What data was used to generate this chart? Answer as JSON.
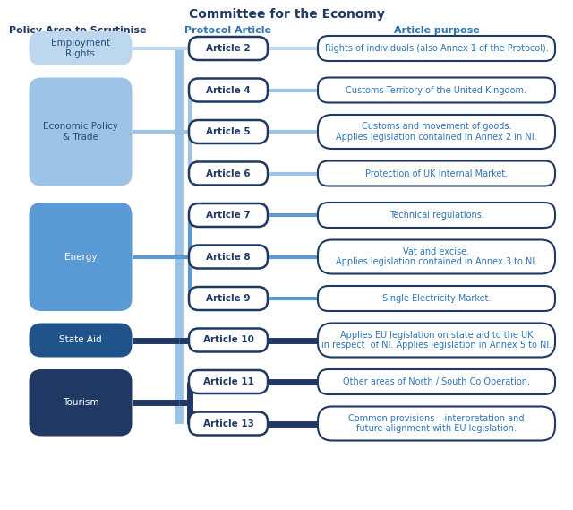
{
  "title": "Committee for the Economy",
  "col_headers": [
    "Policy Area to Scrutinise",
    "Protocol Article",
    "Article purpose"
  ],
  "articles": [
    {
      "label": "Article 2",
      "purpose": "Rights of individuals (also Annex 1 of the Protocol).",
      "purpose_lines": 1,
      "policy_area": "Employment\nRights"
    },
    {
      "label": "Article 4",
      "purpose": "Customs Territory of the United Kingdom.",
      "purpose_lines": 1,
      "policy_area": "Economic Policy\n& Trade"
    },
    {
      "label": "Article 5",
      "purpose": "Customs and movement of goods.\nApplies legislation contained in Annex 2 in NI.",
      "purpose_lines": 2,
      "policy_area": "Economic Policy\n& Trade"
    },
    {
      "label": "Article 6",
      "purpose": "Protection of UK Internal Market.",
      "purpose_lines": 1,
      "policy_area": "Economic Policy\n& Trade"
    },
    {
      "label": "Article 7",
      "purpose": "Technical regulations.",
      "purpose_lines": 1,
      "policy_area": "Energy"
    },
    {
      "label": "Article 8",
      "purpose": "Vat and excise.\nApplies legislation contained in Annex 3 to NI.",
      "purpose_lines": 2,
      "policy_area": "Energy"
    },
    {
      "label": "Article 9",
      "purpose": "Single Electricity Market.",
      "purpose_lines": 1,
      "policy_area": "Energy"
    },
    {
      "label": "Article 10",
      "purpose": "Applies EU legislation on state aid to the UK\nin respect  of NI. Applies legislation in Annex 5 to NI.",
      "purpose_lines": 2,
      "policy_area": "State Aid"
    },
    {
      "label": "Article 11",
      "purpose": "Other areas of North / South Co Operation.",
      "purpose_lines": 1,
      "policy_area": "Tourism"
    },
    {
      "label": "Article 13",
      "purpose": "Common provisions – interpretation and\nfuture alignment with EU legislation.",
      "purpose_lines": 2,
      "policy_area": "Tourism"
    }
  ],
  "policy_areas_order": [
    "Employment\nRights",
    "Economic Policy\n& Trade",
    "Energy",
    "State Aid",
    "Tourism"
  ],
  "policy_fill_colors": {
    "Employment\nRights": "#bdd7ee",
    "Economic Policy\n& Trade": "#9dc3e6",
    "Energy": "#5b9bd5",
    "State Aid": "#1f538a",
    "Tourism": "#1f3864"
  },
  "policy_text_colors": {
    "Employment\nRights": "#1f4e79",
    "Economic Policy\n& Trade": "#1f4e79",
    "Energy": "#ffffff",
    "State Aid": "#ffffff",
    "Tourism": "#ffffff"
  },
  "connector_colors": {
    "Employment\nRights": "#bdd7ee",
    "Economic Policy\n& Trade": "#9dc3e6",
    "Energy": "#5b9bd5",
    "State Aid": "#1f3864",
    "Tourism": "#1f3864"
  },
  "main_spine_color": "#9dc3e6",
  "article_border_color": "#1f3864",
  "article_text_color": "#1f3864",
  "purpose_border_color": "#1f3864",
  "purpose_text_color": "#2e75b6",
  "header_color_left": "#1f3864",
  "header_color_mid": "#2e75b6",
  "header_color_right": "#2e75b6",
  "title_color": "#1f3864",
  "background_color": "#ffffff",
  "title_fontsize": 10,
  "header_fontsize": 8,
  "article_fontsize": 7.5,
  "purpose_fontsize": 7.0,
  "policy_fontsize": 7.5
}
